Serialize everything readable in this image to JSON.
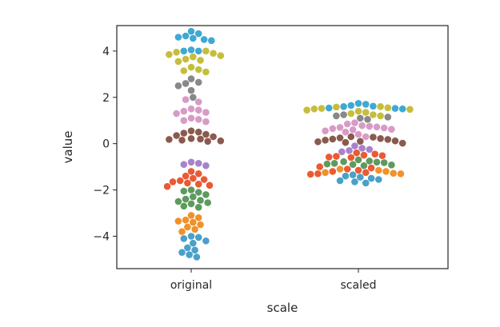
{
  "chart_data": {
    "type": "scatter",
    "subtype": "swarm",
    "title": "",
    "xlabel": "scale",
    "ylabel": "value",
    "categories": [
      "original",
      "scaled"
    ],
    "ylim": [
      -5.4,
      5.1
    ],
    "yticks": [
      -4,
      -2,
      0,
      2,
      4
    ],
    "ytick_labels": [
      "−4",
      "−2",
      "0",
      "2",
      "4"
    ],
    "grid": false,
    "legend": "none",
    "groups": [
      {
        "color": "#3fa9d3",
        "original": [
          4.05,
          4.0,
          4.0,
          4.45,
          4.5,
          4.55,
          4.6,
          4.65,
          4.75,
          4.85
        ],
        "scaled": [
          1.5,
          1.52,
          1.54,
          1.6,
          1.62,
          1.65,
          1.7,
          1.74
        ]
      },
      {
        "color": "#c5be3c",
        "original": [
          3.1,
          3.15,
          3.2,
          3.3,
          3.55,
          3.6,
          3.65,
          3.75,
          3.8,
          3.85,
          3.9,
          3.95,
          4.0
        ],
        "scaled": [
          1.2,
          1.25,
          1.3,
          1.35,
          1.4,
          1.45,
          1.48,
          1.5,
          1.52,
          1.55,
          1.58,
          1.6
        ]
      },
      {
        "color": "#888888",
        "original": [
          2.0,
          2.3,
          2.5,
          2.6,
          2.65,
          2.8
        ],
        "scaled": [
          1.05,
          1.1,
          1.15,
          1.2,
          1.25
        ]
      },
      {
        "color": "#d89bc6",
        "original": [
          0.95,
          1.0,
          1.05,
          1.1,
          1.3,
          1.35,
          1.4,
          1.45,
          1.5,
          1.8,
          1.9
        ],
        "scaled": [
          0.3,
          0.4,
          0.5,
          0.55,
          0.6,
          0.62,
          0.65,
          0.68,
          0.7,
          0.72,
          0.75,
          0.78,
          0.85,
          0.9
        ]
      },
      {
        "color": "#8b5a4e",
        "original": [
          0.1,
          0.12,
          0.15,
          0.18,
          0.2,
          0.22,
          0.3,
          0.35,
          0.4,
          0.45,
          0.5,
          0.55
        ],
        "scaled": [
          0.02,
          0.05,
          0.08,
          0.1,
          0.12,
          0.15,
          0.18,
          0.2,
          0.22,
          0.25,
          0.28,
          0.3
        ]
      },
      {
        "color": "#a882cb",
        "original": [
          -0.8,
          -0.85,
          -0.9,
          -0.95
        ],
        "scaled": [
          -0.1,
          -0.2,
          -0.25,
          -0.3,
          -0.35
        ]
      },
      {
        "color": "#ea5a33",
        "original": [
          -1.2,
          -1.3,
          -1.4,
          -1.5,
          -1.55,
          -1.6,
          -1.65,
          -1.7,
          -1.75,
          -1.8,
          -1.85
        ],
        "scaled": [
          -0.4,
          -0.45,
          -0.5,
          -0.52,
          -0.55,
          -0.58,
          -0.6,
          -1.0,
          -1.05,
          -1.1,
          -1.15,
          -1.2,
          -1.25,
          -1.3,
          -1.32
        ]
      },
      {
        "color": "#5e9a5e",
        "original": [
          -2.0,
          -2.05,
          -2.1,
          -2.2,
          -2.3,
          -2.4,
          -2.45,
          -2.5,
          -2.55,
          -2.6,
          -2.7,
          -2.75
        ],
        "scaled": [
          -0.7,
          -0.75,
          -0.78,
          -0.8,
          -0.82,
          -0.85,
          -0.88,
          -0.9,
          -0.92,
          -0.95
        ]
      },
      {
        "color": "#f0922a",
        "original": [
          -3.1,
          -3.2,
          -3.3,
          -3.35,
          -3.4,
          -3.5,
          -3.6,
          -3.7,
          -3.8
        ],
        "scaled": [
          -1.1,
          -1.15,
          -1.2,
          -1.25,
          -1.28,
          -1.3
        ]
      },
      {
        "color": "#4aa0c9",
        "original": [
          -4.0,
          -4.05,
          -4.1,
          -4.2,
          -4.3,
          -4.5,
          -4.6,
          -4.7,
          -4.8,
          -4.9
        ],
        "scaled": [
          -1.35,
          -1.4,
          -1.45,
          -1.5,
          -1.55,
          -1.6,
          -1.65,
          -1.7
        ]
      }
    ]
  }
}
